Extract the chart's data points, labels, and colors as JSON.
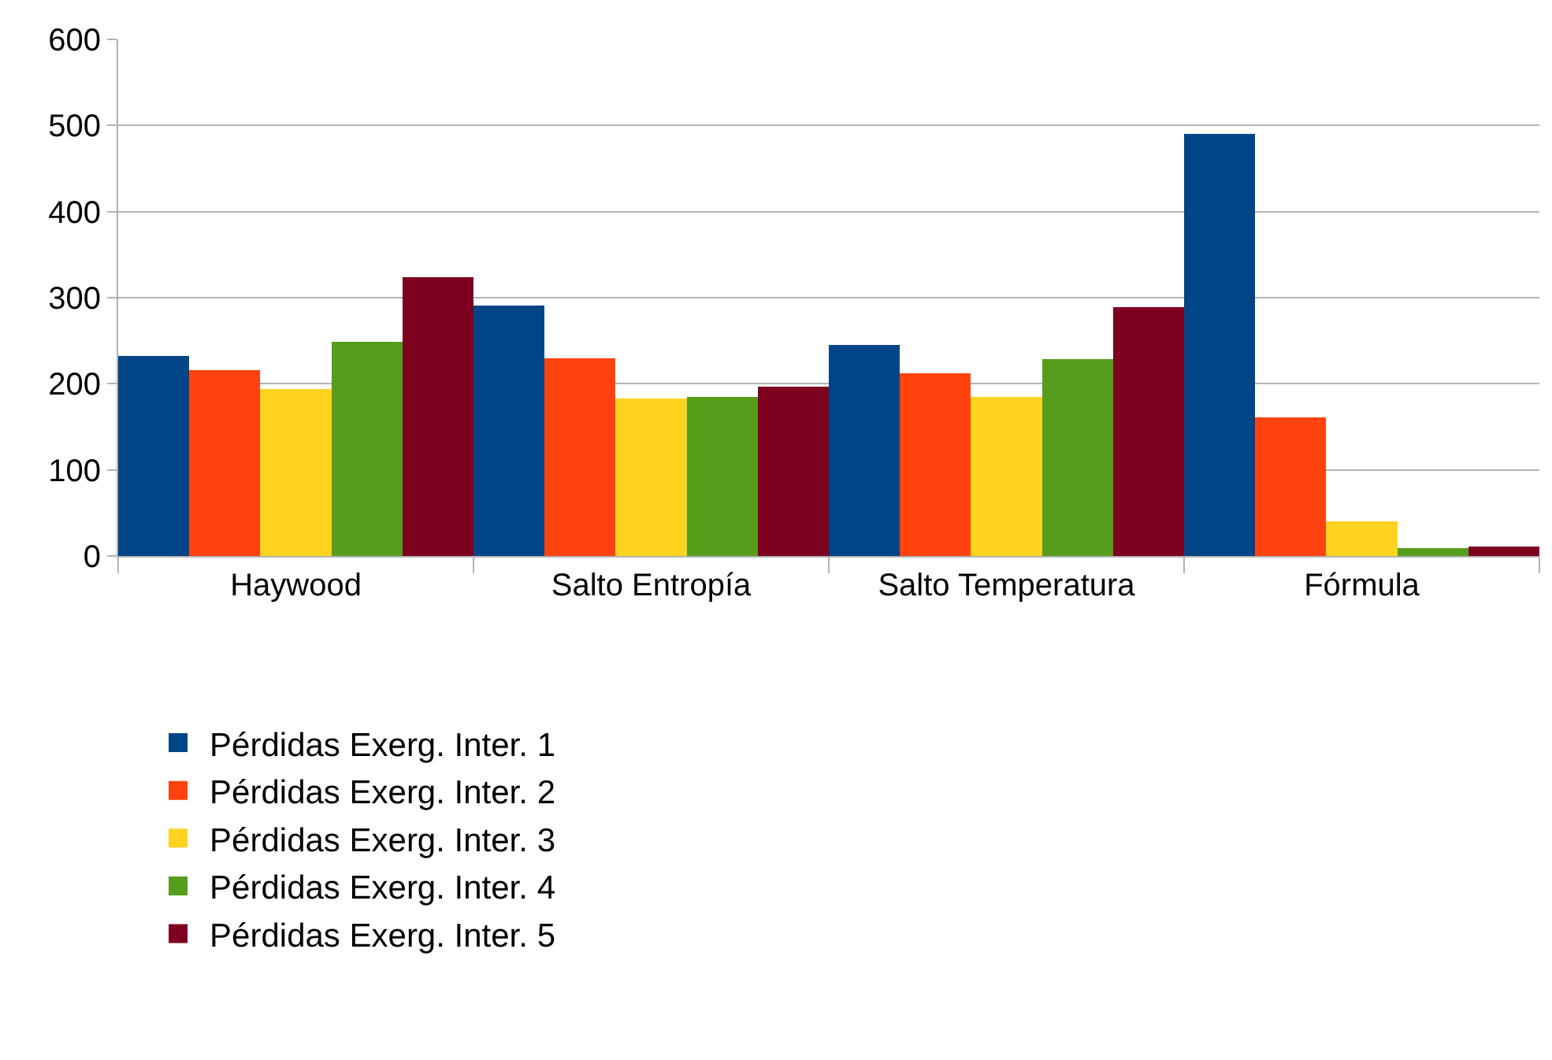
{
  "chart_data": {
    "type": "bar",
    "categories": [
      "Haywood",
      "Salto Entropía",
      "Salto Temperatura",
      "Fórmula"
    ],
    "series": [
      {
        "name": "Pérdidas Exerg. Inter. 1",
        "color": "#004586",
        "values": [
          232,
          291,
          245,
          490
        ]
      },
      {
        "name": "Pérdidas Exerg. Inter. 2",
        "color": "#ff420e",
        "values": [
          216,
          230,
          212,
          161
        ]
      },
      {
        "name": "Pérdidas Exerg. Inter. 3",
        "color": "#ffd320",
        "values": [
          194,
          183,
          185,
          40
        ]
      },
      {
        "name": "Pérdidas Exerg. Inter. 4",
        "color": "#579d1c",
        "values": [
          249,
          185,
          229,
          9
        ]
      },
      {
        "name": "Pérdidas Exerg. Inter. 5",
        "color": "#7e0021",
        "values": [
          324,
          197,
          289,
          11
        ]
      }
    ],
    "ylim": [
      0,
      600
    ],
    "yticks": [
      0,
      100,
      200,
      300,
      400,
      500,
      600
    ],
    "grid": "y",
    "legend": "bottom left"
  }
}
